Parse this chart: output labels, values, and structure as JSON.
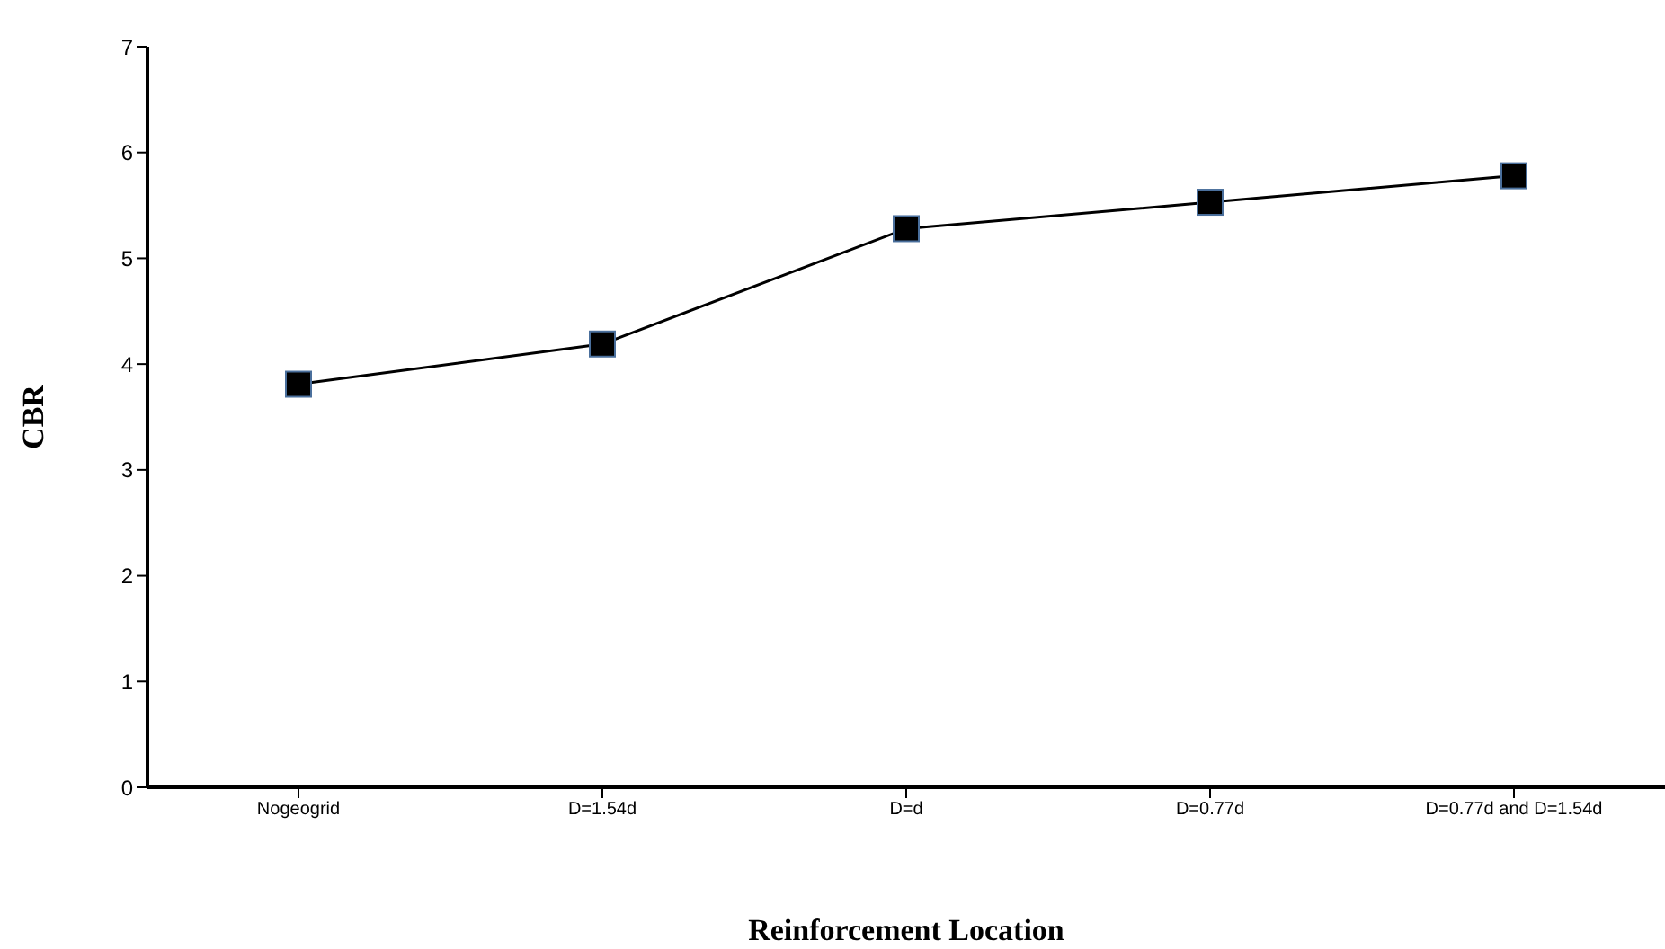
{
  "chart_data": {
    "type": "line",
    "xlabel": "Reinforcement Location",
    "ylabel": "CBR",
    "categories": [
      "Nogeogrid",
      "D=1.54d",
      "D=d",
      "D=0.77d",
      "D=0.77d and D=1.54d"
    ],
    "series": [
      {
        "color": "#000000",
        "values": [
          3.81,
          4.19,
          5.28,
          5.53,
          5.78
        ]
      }
    ],
    "ylim": [
      0,
      7
    ],
    "yticks": [
      0,
      1,
      2,
      3,
      4,
      5,
      6,
      7
    ],
    "marker": "square",
    "line_style": "solid"
  }
}
